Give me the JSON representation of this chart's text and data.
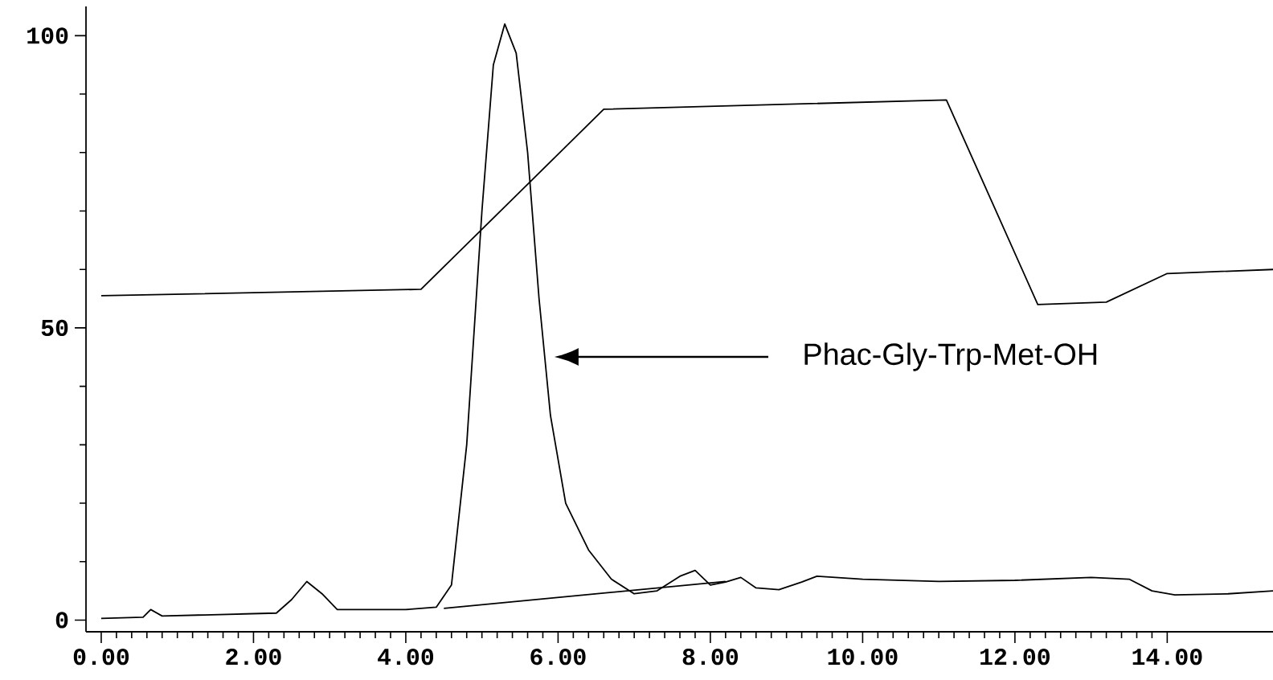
{
  "chart_data": {
    "type": "line",
    "x": [
      0,
      0.55,
      0.65,
      0.8,
      2.3,
      2.5,
      2.7,
      2.9,
      3.1,
      4.0,
      4.4,
      4.6,
      4.8,
      5.0,
      5.15,
      5.3,
      5.45,
      5.6,
      5.75,
      5.9,
      6.1,
      6.4,
      6.7,
      7.0,
      7.3,
      7.6,
      7.8,
      8.0,
      8.2,
      8.4,
      8.6,
      8.9,
      9.2,
      9.4,
      10.0,
      11.0,
      12.0,
      13.0,
      13.5,
      13.8,
      14.1,
      14.8,
      15.4
    ],
    "series": [
      {
        "color": "#000000",
        "values": [
          0.3,
          0.5,
          1.8,
          0.7,
          1.2,
          3.5,
          6.6,
          4.5,
          1.8,
          1.8,
          2.2,
          6,
          30,
          70,
          95,
          102,
          97,
          80,
          55,
          35,
          20,
          12,
          7,
          4.5,
          5,
          7.5,
          8.5,
          6,
          6.5,
          7.3,
          5.5,
          5.2,
          6.5,
          7.5,
          7,
          6.6,
          6.8,
          7.3,
          7,
          5,
          4.3,
          4.5,
          5.0
        ]
      },
      {
        "color": "#000000",
        "x": [
          0,
          4.2,
          6.6,
          11.1,
          12.3,
          13.2,
          14.0,
          15.4
        ],
        "values": [
          55.5,
          56.6,
          87.4,
          89,
          54,
          54.4,
          59.3,
          60
        ]
      },
      {
        "color": "#000000",
        "x": [
          4.5,
          8.2
        ],
        "values": [
          2.0,
          6.6
        ]
      }
    ],
    "xlim": [
      -0.2,
      15.4
    ],
    "ylim": [
      -2,
      105
    ],
    "xticks": [
      {
        "value": 0,
        "label": "0.00"
      },
      {
        "value": 2,
        "label": "2.00"
      },
      {
        "value": 4,
        "label": "4.00"
      },
      {
        "value": 6,
        "label": "6.00"
      },
      {
        "value": 8,
        "label": "8.00"
      },
      {
        "value": 10,
        "label": "10.00"
      },
      {
        "value": 12,
        "label": "12.00"
      },
      {
        "value": 14,
        "label": "14.00"
      }
    ],
    "yticks": [
      0,
      50,
      100
    ],
    "annotations": [
      "Phac-Gly-Trp-Met-OH"
    ]
  }
}
